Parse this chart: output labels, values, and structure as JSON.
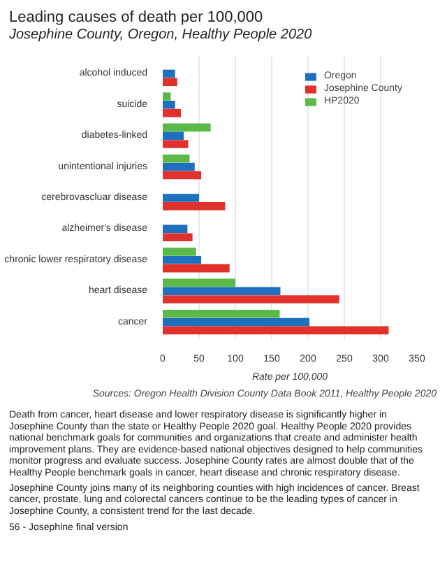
{
  "chart_data": {
    "type": "bar",
    "orientation": "horizontal",
    "title": "Leading causes of death per 100,000",
    "subtitle": "Josephine County, Oregon, Healthy People 2020",
    "xlabel": "Rate per 100,000",
    "categories": [
      "alcohol induced",
      "suicide",
      "diabetes-linked",
      "unintentional injuries",
      "cerebrovascluar disease",
      "alzheimer's disease",
      "chronic lower respiratory disease",
      "heart disease",
      "cancer"
    ],
    "series": [
      {
        "name": "Oregon",
        "color": "#1f6fbf",
        "values": [
          17,
          17,
          29,
          44,
          50,
          34,
          53,
          162,
          202
        ]
      },
      {
        "name": "Josephine County",
        "color": "#e0312c",
        "values": [
          20,
          25,
          35,
          53,
          86,
          41,
          92,
          243,
          311
        ]
      },
      {
        "name": "HP2020",
        "color": "#5ab947",
        "values": [
          null,
          11,
          66,
          37,
          null,
          null,
          46,
          100,
          161
        ]
      }
    ],
    "xlim": [
      0,
      350
    ],
    "xticks": [
      0,
      50,
      100,
      150,
      200,
      250,
      300,
      350
    ],
    "grid": "x",
    "legend": "top right",
    "annotations": [
      "Sources: Oregon Health Division County Data Book 2011, Healthy People 2020",
      "Death from cancer, heart disease and lower respiratory disease is significantly higher in Josephine County than the state or Healthy People 2020 goal. Healthy People 2020 provides national benchmark goals for communities and organizations that create and administer health improvement plans. They are evidence-based national objectives designed to help communities monitor progress and evaluate success. Josephine County rates are almost double that of the Healthy People benchmark goals in cancer, heart disease and chronic respiratory disease.",
      "Josephine County joins many of its neighboring counties with high incidences of cancer. Breast cancer, prostate, lung and colorectal cancers continue to be the leading types of cancer in Josephine County, a consistent trend for the last decade.",
      "56 - Josephine final version"
    ]
  }
}
